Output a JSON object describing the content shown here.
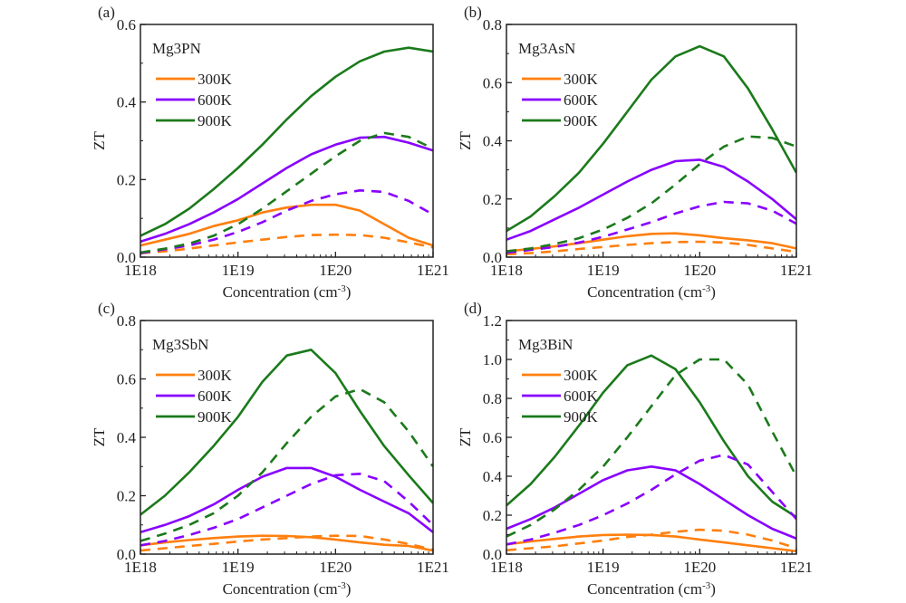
{
  "colors": {
    "300K": "#ff7f0e",
    "600K": "#8800ff",
    "900K": "#1b7a1b",
    "axis": "#222222"
  },
  "chart_data": [
    {
      "type": "line",
      "panel_label": "(a)",
      "compound": "Mg3PN",
      "xlabel": "Concentration (cm-3)",
      "ylabel": "ZT",
      "xscale": "log",
      "xlim": [
        1e+18,
        1e+21
      ],
      "ylim": [
        0,
        0.6
      ],
      "xticks": [
        "1E18",
        "1E19",
        "1E20",
        "1E21"
      ],
      "yticks": [
        "0.0",
        "0.2",
        "0.4",
        "0.6"
      ],
      "legend": [
        "300K",
        "600K",
        "900K"
      ],
      "legend_placement": "top-left",
      "x": [
        1e+18,
        1.78e+18,
        3.16e+18,
        5.62e+18,
        1e+19,
        1.78e+19,
        3.16e+19,
        5.62e+19,
        1e+20,
        1.78e+20,
        3.16e+20,
        5.62e+20,
        1e+21
      ],
      "series": [
        {
          "name": "300K",
          "style": "solid",
          "values": [
            0.03,
            0.045,
            0.06,
            0.08,
            0.095,
            0.115,
            0.128,
            0.135,
            0.135,
            0.12,
            0.085,
            0.05,
            0.03
          ]
        },
        {
          "name": "600K",
          "style": "solid",
          "values": [
            0.04,
            0.06,
            0.085,
            0.115,
            0.15,
            0.19,
            0.23,
            0.265,
            0.29,
            0.308,
            0.31,
            0.295,
            0.275
          ]
        },
        {
          "name": "900K",
          "style": "solid",
          "values": [
            0.055,
            0.085,
            0.125,
            0.175,
            0.23,
            0.29,
            0.355,
            0.415,
            0.465,
            0.505,
            0.53,
            0.54,
            0.53
          ]
        },
        {
          "style": "dashed",
          "temp": "300K",
          "values": [
            0.01,
            0.015,
            0.022,
            0.03,
            0.038,
            0.045,
            0.052,
            0.057,
            0.058,
            0.057,
            0.05,
            0.038,
            0.025
          ]
        },
        {
          "style": "dashed",
          "temp": "600K",
          "values": [
            0.01,
            0.02,
            0.03,
            0.045,
            0.065,
            0.09,
            0.12,
            0.145,
            0.162,
            0.172,
            0.168,
            0.145,
            0.11
          ]
        },
        {
          "style": "dashed",
          "temp": "900K",
          "values": [
            0.012,
            0.022,
            0.035,
            0.055,
            0.085,
            0.125,
            0.17,
            0.215,
            0.26,
            0.3,
            0.32,
            0.31,
            0.28
          ]
        }
      ]
    },
    {
      "type": "line",
      "panel_label": "(b)",
      "compound": "Mg3AsN",
      "xlabel": "Concentration (cm-3)",
      "ylabel": "ZT",
      "xscale": "log",
      "xlim": [
        1e+18,
        1e+21
      ],
      "ylim": [
        0,
        0.8
      ],
      "xticks": [
        "1E18",
        "1E19",
        "1E20",
        "1E21"
      ],
      "yticks": [
        "0.0",
        "0.2",
        "0.4",
        "0.6",
        "0.8"
      ],
      "legend": [
        "300K",
        "600K",
        "900K"
      ],
      "legend_placement": "top-left",
      "x": [
        1e+18,
        1.78e+18,
        3.16e+18,
        5.62e+18,
        1e+19,
        1.78e+19,
        3.16e+19,
        5.62e+19,
        1e+20,
        1.78e+20,
        3.16e+20,
        5.62e+20,
        1e+21
      ],
      "series": [
        {
          "name": "300K",
          "style": "solid",
          "values": [
            0.02,
            0.028,
            0.037,
            0.048,
            0.06,
            0.072,
            0.08,
            0.082,
            0.075,
            0.065,
            0.058,
            0.048,
            0.03
          ]
        },
        {
          "name": "600K",
          "style": "solid",
          "values": [
            0.06,
            0.09,
            0.13,
            0.17,
            0.215,
            0.26,
            0.3,
            0.33,
            0.335,
            0.31,
            0.26,
            0.2,
            0.13
          ]
        },
        {
          "name": "900K",
          "style": "solid",
          "values": [
            0.09,
            0.14,
            0.21,
            0.29,
            0.39,
            0.5,
            0.61,
            0.69,
            0.725,
            0.69,
            0.58,
            0.44,
            0.29
          ]
        },
        {
          "style": "dashed",
          "temp": "300K",
          "values": [
            0.01,
            0.014,
            0.02,
            0.028,
            0.035,
            0.042,
            0.048,
            0.052,
            0.053,
            0.05,
            0.042,
            0.03,
            0.018
          ]
        },
        {
          "style": "dashed",
          "temp": "600K",
          "values": [
            0.015,
            0.025,
            0.035,
            0.05,
            0.07,
            0.095,
            0.12,
            0.15,
            0.175,
            0.19,
            0.185,
            0.16,
            0.115
          ]
        },
        {
          "style": "dashed",
          "temp": "900K",
          "values": [
            0.02,
            0.03,
            0.045,
            0.065,
            0.095,
            0.135,
            0.185,
            0.25,
            0.32,
            0.38,
            0.415,
            0.41,
            0.38
          ]
        }
      ]
    },
    {
      "type": "line",
      "panel_label": "(c)",
      "compound": "Mg3SbN",
      "xlabel": "Concentration (cm-3)",
      "ylabel": "ZT",
      "xscale": "log",
      "xlim": [
        1e+18,
        1e+21
      ],
      "ylim": [
        0,
        0.8
      ],
      "xticks": [
        "1E18",
        "1E19",
        "1E20",
        "1E21"
      ],
      "yticks": [
        "0.0",
        "0.2",
        "0.4",
        "0.6",
        "0.8"
      ],
      "legend": [
        "300K",
        "600K",
        "900K"
      ],
      "legend_placement": "top-left",
      "x": [
        1e+18,
        1.78e+18,
        3.16e+18,
        5.62e+18,
        1e+19,
        1.78e+19,
        3.16e+19,
        5.62e+19,
        1e+20,
        1.78e+20,
        3.16e+20,
        5.62e+20,
        1e+21
      ],
      "series": [
        {
          "name": "300K",
          "style": "solid",
          "values": [
            0.03,
            0.04,
            0.048,
            0.055,
            0.06,
            0.063,
            0.062,
            0.058,
            0.05,
            0.04,
            0.032,
            0.028,
            0.012
          ]
        },
        {
          "name": "600K",
          "style": "solid",
          "values": [
            0.075,
            0.1,
            0.13,
            0.17,
            0.22,
            0.265,
            0.295,
            0.295,
            0.265,
            0.22,
            0.18,
            0.14,
            0.075
          ]
        },
        {
          "name": "900K",
          "style": "solid",
          "values": [
            0.135,
            0.2,
            0.28,
            0.37,
            0.47,
            0.59,
            0.68,
            0.7,
            0.62,
            0.49,
            0.37,
            0.27,
            0.175
          ]
        },
        {
          "style": "dashed",
          "temp": "300K",
          "values": [
            0.012,
            0.02,
            0.028,
            0.035,
            0.043,
            0.05,
            0.055,
            0.06,
            0.063,
            0.062,
            0.05,
            0.035,
            0.015
          ]
        },
        {
          "style": "dashed",
          "temp": "600K",
          "values": [
            0.03,
            0.045,
            0.065,
            0.09,
            0.12,
            0.16,
            0.2,
            0.24,
            0.27,
            0.275,
            0.25,
            0.18,
            0.1
          ]
        },
        {
          "style": "dashed",
          "temp": "900K",
          "values": [
            0.045,
            0.07,
            0.1,
            0.14,
            0.2,
            0.28,
            0.38,
            0.47,
            0.54,
            0.565,
            0.52,
            0.42,
            0.3
          ]
        }
      ]
    },
    {
      "type": "line",
      "panel_label": "(d)",
      "compound": "Mg3BiN",
      "xlabel": "Concentration (cm-3)",
      "ylabel": "ZT",
      "xscale": "log",
      "xlim": [
        1e+18,
        1e+21
      ],
      "ylim": [
        0,
        1.2
      ],
      "xticks": [
        "1E18",
        "1E19",
        "1E20",
        "1E21"
      ],
      "yticks": [
        "0.0",
        "0.2",
        "0.4",
        "0.6",
        "0.8",
        "1.0",
        "1.2"
      ],
      "legend": [
        "300K",
        "600K",
        "900K"
      ],
      "legend_placement": "top-left",
      "x": [
        1e+18,
        1.78e+18,
        3.16e+18,
        5.62e+18,
        1e+19,
        1.78e+19,
        3.16e+19,
        5.62e+19,
        1e+20,
        1.78e+20,
        3.16e+20,
        5.62e+20,
        1e+21
      ],
      "series": [
        {
          "name": "300K",
          "style": "solid",
          "values": [
            0.05,
            0.065,
            0.078,
            0.09,
            0.098,
            0.1,
            0.098,
            0.09,
            0.075,
            0.06,
            0.045,
            0.03,
            0.015
          ]
        },
        {
          "name": "600K",
          "style": "solid",
          "values": [
            0.13,
            0.18,
            0.24,
            0.31,
            0.38,
            0.43,
            0.45,
            0.43,
            0.36,
            0.28,
            0.2,
            0.13,
            0.08
          ]
        },
        {
          "name": "900K",
          "style": "solid",
          "values": [
            0.25,
            0.36,
            0.5,
            0.66,
            0.83,
            0.97,
            1.02,
            0.95,
            0.78,
            0.58,
            0.4,
            0.27,
            0.19
          ]
        },
        {
          "style": "dashed",
          "temp": "300K",
          "values": [
            0.02,
            0.03,
            0.04,
            0.055,
            0.07,
            0.088,
            0.1,
            0.115,
            0.125,
            0.12,
            0.1,
            0.07,
            0.03
          ]
        },
        {
          "style": "dashed",
          "temp": "600K",
          "values": [
            0.05,
            0.075,
            0.11,
            0.15,
            0.2,
            0.26,
            0.33,
            0.41,
            0.48,
            0.51,
            0.46,
            0.32,
            0.18
          ]
        },
        {
          "style": "dashed",
          "temp": "900K",
          "values": [
            0.09,
            0.15,
            0.23,
            0.33,
            0.45,
            0.6,
            0.76,
            0.92,
            1.0,
            1.0,
            0.87,
            0.63,
            0.4
          ]
        }
      ]
    }
  ]
}
